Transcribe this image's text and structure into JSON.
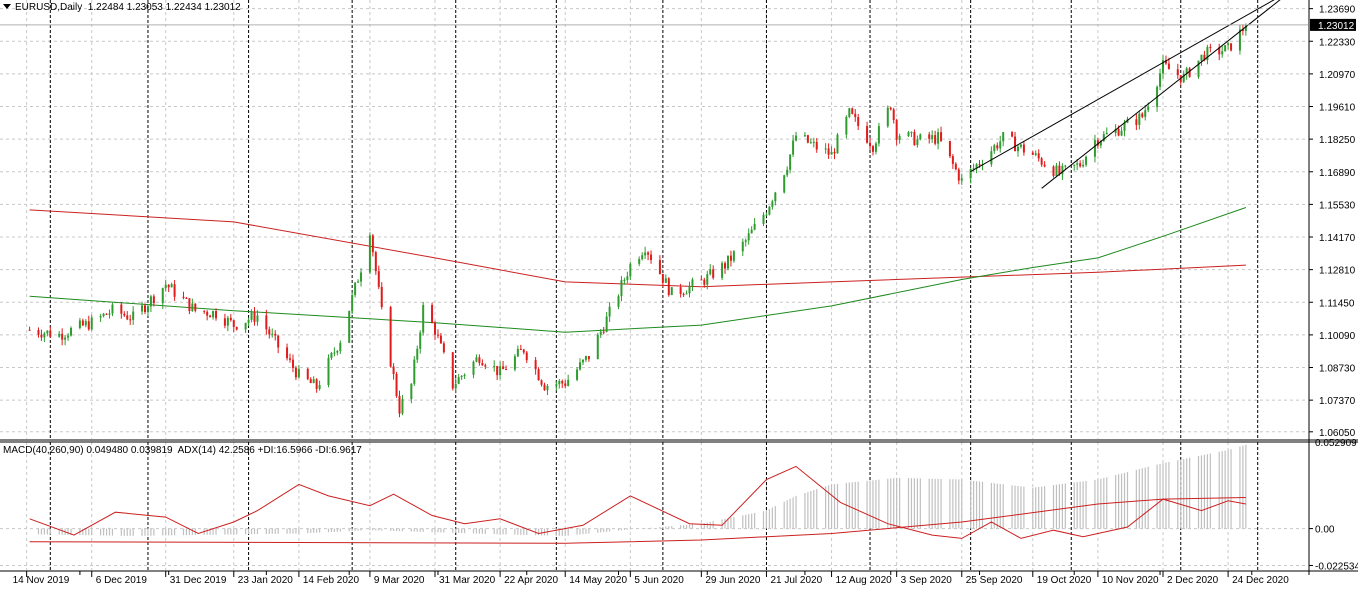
{
  "window": {
    "symbol": "EURUSD,Daily",
    "ohlc": "1.22484 1.23053 1.22434 1.23012",
    "indicator_title": "MACD(40,260,90) 0.049480 0.039819  ADX(14) 42.2586 +DI:16.5966 -DI:6.9617"
  },
  "colors": {
    "bull": "#2e9c2e",
    "bear": "#e01b1b",
    "ma_red": "#cc2020",
    "ma_green": "#1e8a1e",
    "grid": "#c8c8c8",
    "channel": "#000000",
    "histogram": "#c0c0c0",
    "price_tag_bg": "#000000",
    "price_tag_text": "#ffffff"
  },
  "chart_data": [
    {
      "type": "candlestick",
      "name": "EURUSD,Daily",
      "grid": true,
      "y_axis_side": "right",
      "ylim": [
        1.0575,
        1.2405
      ],
      "y_ticks": [
        "1.23690",
        "1.22330",
        "1.20970",
        "1.19610",
        "1.18250",
        "1.16890",
        "1.15530",
        "1.14170",
        "1.12810",
        "1.11450",
        "1.10090",
        "1.08730",
        "1.07370",
        "1.06050"
      ],
      "current_price": "1.23012",
      "x_ticks": [
        "14 Nov 2019",
        "6 Dec 2019",
        "31 Dec 2019",
        "23 Jan 2020",
        "14 Feb 2020",
        "9 Mar 2020",
        "31 Mar 2020",
        "22 Apr 2020",
        "14 May 2020",
        "5 Jun 2020",
        "29 Jun 2020",
        "21 Jul 2020",
        "12 Aug 2020",
        "3 Sep 2020",
        "25 Sep 2020",
        "19 Oct 2020",
        "10 Nov 2020",
        "2 Dec 2020",
        "24 Dec 2020"
      ],
      "close_path": [
        [
          "2019-11-15",
          1.103
        ],
        [
          "2019-11-25",
          1.101
        ],
        [
          "2019-12-06",
          1.106
        ],
        [
          "2019-12-13",
          1.111
        ],
        [
          "2019-12-20",
          1.108
        ],
        [
          "2019-12-31",
          1.122
        ],
        [
          "2020-01-10",
          1.111
        ],
        [
          "2020-01-17",
          1.11
        ],
        [
          "2020-01-23",
          1.105
        ],
        [
          "2020-01-31",
          1.109
        ],
        [
          "2020-02-07",
          1.096
        ],
        [
          "2020-02-14",
          1.084
        ],
        [
          "2020-02-20",
          1.079
        ],
        [
          "2020-02-28",
          1.099
        ],
        [
          "2020-03-06",
          1.129
        ],
        [
          "2020-03-09",
          1.145
        ],
        [
          "2020-03-13",
          1.11
        ],
        [
          "2020-03-19",
          1.07
        ],
        [
          "2020-03-23",
          1.08
        ],
        [
          "2020-03-27",
          1.112
        ],
        [
          "2020-03-31",
          1.103
        ],
        [
          "2020-04-06",
          1.08
        ],
        [
          "2020-04-15",
          1.092
        ],
        [
          "2020-04-22",
          1.085
        ],
        [
          "2020-04-30",
          1.095
        ],
        [
          "2020-05-07",
          1.08
        ],
        [
          "2020-05-14",
          1.081
        ],
        [
          "2020-05-22",
          1.092
        ],
        [
          "2020-05-29",
          1.11
        ],
        [
          "2020-06-05",
          1.13
        ],
        [
          "2020-06-10",
          1.138
        ],
        [
          "2020-06-19",
          1.118
        ],
        [
          "2020-06-29",
          1.123
        ],
        [
          "2020-07-07",
          1.13
        ],
        [
          "2020-07-14",
          1.14
        ],
        [
          "2020-07-21",
          1.153
        ],
        [
          "2020-07-28",
          1.172
        ],
        [
          "2020-07-31",
          1.184
        ],
        [
          "2020-08-07",
          1.179
        ],
        [
          "2020-08-12",
          1.176
        ],
        [
          "2020-08-18",
          1.193
        ],
        [
          "2020-08-26",
          1.18
        ],
        [
          "2020-09-01",
          1.197
        ],
        [
          "2020-09-03",
          1.185
        ],
        [
          "2020-09-10",
          1.182
        ],
        [
          "2020-09-17",
          1.183
        ],
        [
          "2020-09-25",
          1.165
        ],
        [
          "2020-10-01",
          1.173
        ],
        [
          "2020-10-09",
          1.183
        ],
        [
          "2020-10-19",
          1.176
        ],
        [
          "2020-10-28",
          1.168
        ],
        [
          "2020-11-04",
          1.172
        ],
        [
          "2020-11-09",
          1.182
        ],
        [
          "2020-11-16",
          1.186
        ],
        [
          "2020-11-25",
          1.192
        ],
        [
          "2020-12-02",
          1.213
        ],
        [
          "2020-12-09",
          1.208
        ],
        [
          "2020-12-16",
          1.218
        ],
        [
          "2020-12-24",
          1.22
        ],
        [
          "2020-12-30",
          1.2301
        ]
      ]
    },
    {
      "type": "line",
      "name": "",
      "series": [
        {
          "name": "",
          "color": "red",
          "points": [
            [
              "2019-11-15",
              1.153
            ],
            [
              "2020-01-23",
              1.148
            ],
            [
              "2020-03-31",
              1.133
            ],
            [
              "2020-05-14",
              1.123
            ],
            [
              "2020-06-29",
              1.121
            ],
            [
              "2020-08-12",
              1.123
            ],
            [
              "2020-09-25",
              1.125
            ],
            [
              "2020-11-10",
              1.127
            ],
            [
              "2020-12-30",
              1.13
            ]
          ]
        },
        {
          "name": "",
          "color": "green",
          "points": [
            [
              "2019-11-15",
              1.117
            ],
            [
              "2020-01-23",
              1.111
            ],
            [
              "2020-03-31",
              1.106
            ],
            [
              "2020-05-14",
              1.102
            ],
            [
              "2020-06-29",
              1.105
            ],
            [
              "2020-08-12",
              1.113
            ],
            [
              "2020-09-25",
              1.124
            ],
            [
              "2020-10-19",
              1.129
            ],
            [
              "2020-11-10",
              1.133
            ],
            [
              "2020-12-02",
              1.142
            ],
            [
              "2020-12-30",
              1.154
            ]
          ]
        }
      ]
    },
    {
      "type": "line",
      "name": "channel",
      "series": [
        {
          "name": "",
          "points": [
            [
              "2020-09-28",
              1.169
            ],
            [
              "2021-01-12",
              1.243
            ]
          ]
        },
        {
          "name": "",
          "points": [
            [
              "2020-10-22",
              1.162
            ],
            [
              "2021-01-12",
              1.242
            ]
          ]
        }
      ]
    },
    {
      "type": "bar+line",
      "name": "MACD(40,260,90)",
      "ylim": [
        -0.0253,
        0.0529
      ],
      "y_ticks": [
        "0.052909",
        "0.00",
        "-0.022534"
      ],
      "histogram": [
        [
          "2019-11-15",
          0.0
        ],
        [
          "2019-11-16",
          -0.0035
        ],
        [
          "2019-12-20",
          -0.0045
        ],
        [
          "2020-02-14",
          -0.003
        ],
        [
          "2020-03-09",
          -0.001
        ],
        [
          "2020-04-22",
          -0.0035
        ],
        [
          "2020-05-14",
          -0.0045
        ],
        [
          "2020-06-05",
          -0.0005
        ],
        [
          "2020-06-29",
          0.003
        ],
        [
          "2020-07-21",
          0.011
        ],
        [
          "2020-07-31",
          0.02
        ],
        [
          "2020-08-12",
          0.027
        ],
        [
          "2020-09-03",
          0.031
        ],
        [
          "2020-09-25",
          0.03
        ],
        [
          "2020-10-19",
          0.025
        ],
        [
          "2020-11-10",
          0.03
        ],
        [
          "2020-12-02",
          0.04
        ],
        [
          "2020-12-24",
          0.048
        ],
        [
          "2020-12-30",
          0.0512
        ]
      ],
      "series": [
        {
          "name": "ADX(14)",
          "color": "red",
          "points": [
            [
              "2019-11-15",
              0.006
            ],
            [
              "2019-11-30",
              -0.004
            ],
            [
              "2019-12-14",
              0.01
            ],
            [
              "2019-12-31",
              0.007
            ],
            [
              "2020-01-11",
              -0.003
            ],
            [
              "2020-01-23",
              0.004
            ],
            [
              "2020-01-31",
              0.011
            ],
            [
              "2020-02-14",
              0.027
            ],
            [
              "2020-02-24",
              0.02
            ],
            [
              "2020-03-09",
              0.014
            ],
            [
              "2020-03-17",
              0.021
            ],
            [
              "2020-03-30",
              0.008
            ],
            [
              "2020-04-10",
              0.003
            ],
            [
              "2020-04-22",
              0.006
            ],
            [
              "2020-05-05",
              -0.003
            ],
            [
              "2020-05-20",
              0.002
            ],
            [
              "2020-06-05",
              0.02
            ],
            [
              "2020-06-25",
              0.003
            ],
            [
              "2020-07-06",
              0.002
            ],
            [
              "2020-07-21",
              0.03
            ],
            [
              "2020-07-31",
              0.038
            ],
            [
              "2020-08-15",
              0.016
            ],
            [
              "2020-08-31",
              0.003
            ],
            [
              "2020-09-15",
              -0.004
            ],
            [
              "2020-09-25",
              -0.006
            ],
            [
              "2020-10-05",
              0.004
            ],
            [
              "2020-10-15",
              -0.006
            ],
            [
              "2020-10-26",
              -0.001
            ],
            [
              "2020-11-05",
              -0.005
            ],
            [
              "2020-11-20",
              0.001
            ],
            [
              "2020-12-02",
              0.018
            ],
            [
              "2020-12-15",
              0.011
            ],
            [
              "2020-12-24",
              0.017
            ],
            [
              "2020-12-30",
              0.015
            ]
          ]
        },
        {
          "name": "MACD",
          "color": "red",
          "points": [
            [
              "2019-11-15",
              -0.008
            ],
            [
              "2020-02-14",
              -0.0085
            ],
            [
              "2020-05-14",
              -0.009
            ],
            [
              "2020-06-29",
              -0.007
            ],
            [
              "2020-08-12",
              -0.003
            ],
            [
              "2020-09-25",
              0.004
            ],
            [
              "2020-11-10",
              0.015
            ],
            [
              "2020-12-02",
              0.018
            ],
            [
              "2020-12-30",
              0.019
            ]
          ]
        }
      ]
    }
  ]
}
